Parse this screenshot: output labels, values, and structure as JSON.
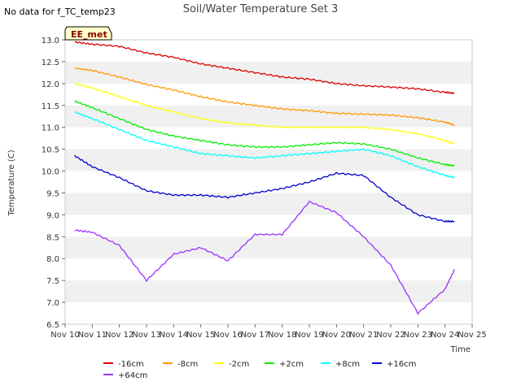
{
  "status_note": "No data for f_TC_temp23",
  "site_badge": "EE_met",
  "chart_data": {
    "type": "line",
    "title": "Soil/Water Temperature Set 3",
    "xlabel": "Time",
    "ylabel": "Temperature (C)",
    "xlim": [
      10,
      25
    ],
    "ylim": [
      6.5,
      13.0
    ],
    "x_ticks": [
      "Nov 10",
      "Nov 11",
      "Nov 12",
      "Nov 13",
      "Nov 14",
      "Nov 15",
      "Nov 16",
      "Nov 17",
      "Nov 18",
      "Nov 19",
      "Nov 20",
      "Nov 21",
      "Nov 22",
      "Nov 23",
      "Nov 24",
      "Nov 25"
    ],
    "x_tick_values": [
      10,
      11,
      12,
      13,
      14,
      15,
      16,
      17,
      18,
      19,
      20,
      21,
      22,
      23,
      24,
      25
    ],
    "y_ticks": [
      "6.5",
      "7.0",
      "7.5",
      "8.0",
      "8.5",
      "9.0",
      "9.5",
      "10.0",
      "10.5",
      "11.0",
      "11.5",
      "12.0",
      "12.5",
      "13.0"
    ],
    "y_tick_values": [
      6.5,
      7.0,
      7.5,
      8.0,
      8.5,
      9.0,
      9.5,
      10.0,
      10.5,
      11.0,
      11.5,
      12.0,
      12.5,
      13.0
    ],
    "x": [
      10.35,
      11,
      12,
      13,
      14,
      15,
      16,
      17,
      18,
      19,
      20,
      21,
      22,
      23,
      24,
      24.35
    ],
    "series": [
      {
        "name": "-16cm",
        "color": "#dd0000",
        "values": [
          12.95,
          12.9,
          12.85,
          12.7,
          12.6,
          12.45,
          12.35,
          12.25,
          12.15,
          12.1,
          12.0,
          11.95,
          11.92,
          11.88,
          11.8,
          11.78
        ]
      },
      {
        "name": "-8cm",
        "color": "#ff9900",
        "values": [
          12.35,
          12.3,
          12.15,
          11.98,
          11.85,
          11.7,
          11.58,
          11.5,
          11.42,
          11.38,
          11.32,
          11.3,
          11.28,
          11.22,
          11.12,
          11.05
        ]
      },
      {
        "name": "-2cm",
        "color": "#ffff00",
        "values": [
          12.0,
          11.9,
          11.7,
          11.5,
          11.35,
          11.2,
          11.1,
          11.05,
          11.0,
          11.0,
          11.0,
          11.0,
          10.95,
          10.85,
          10.7,
          10.62
        ]
      },
      {
        "name": "+2cm",
        "color": "#00ee00",
        "values": [
          11.6,
          11.45,
          11.2,
          10.95,
          10.8,
          10.7,
          10.6,
          10.55,
          10.55,
          10.6,
          10.65,
          10.62,
          10.5,
          10.3,
          10.15,
          10.12
        ]
      },
      {
        "name": "+8cm",
        "color": "#00ffff",
        "values": [
          11.35,
          11.2,
          10.95,
          10.7,
          10.55,
          10.4,
          10.35,
          10.3,
          10.35,
          10.4,
          10.45,
          10.5,
          10.35,
          10.1,
          9.9,
          9.85
        ]
      },
      {
        "name": "+16cm",
        "color": "#0000cc",
        "values": [
          10.35,
          10.1,
          9.85,
          9.55,
          9.45,
          9.45,
          9.4,
          9.5,
          9.6,
          9.75,
          9.95,
          9.9,
          9.4,
          9.0,
          8.85,
          8.85
        ]
      },
      {
        "name": "+64cm",
        "color": "#9933ff",
        "values": [
          8.65,
          8.6,
          8.3,
          7.5,
          8.1,
          8.25,
          7.95,
          8.55,
          8.55,
          9.3,
          9.05,
          8.5,
          7.85,
          6.75,
          7.3,
          7.75
        ]
      }
    ],
    "legend_placement": "bottom",
    "grid": "alternating horizontal bands"
  }
}
